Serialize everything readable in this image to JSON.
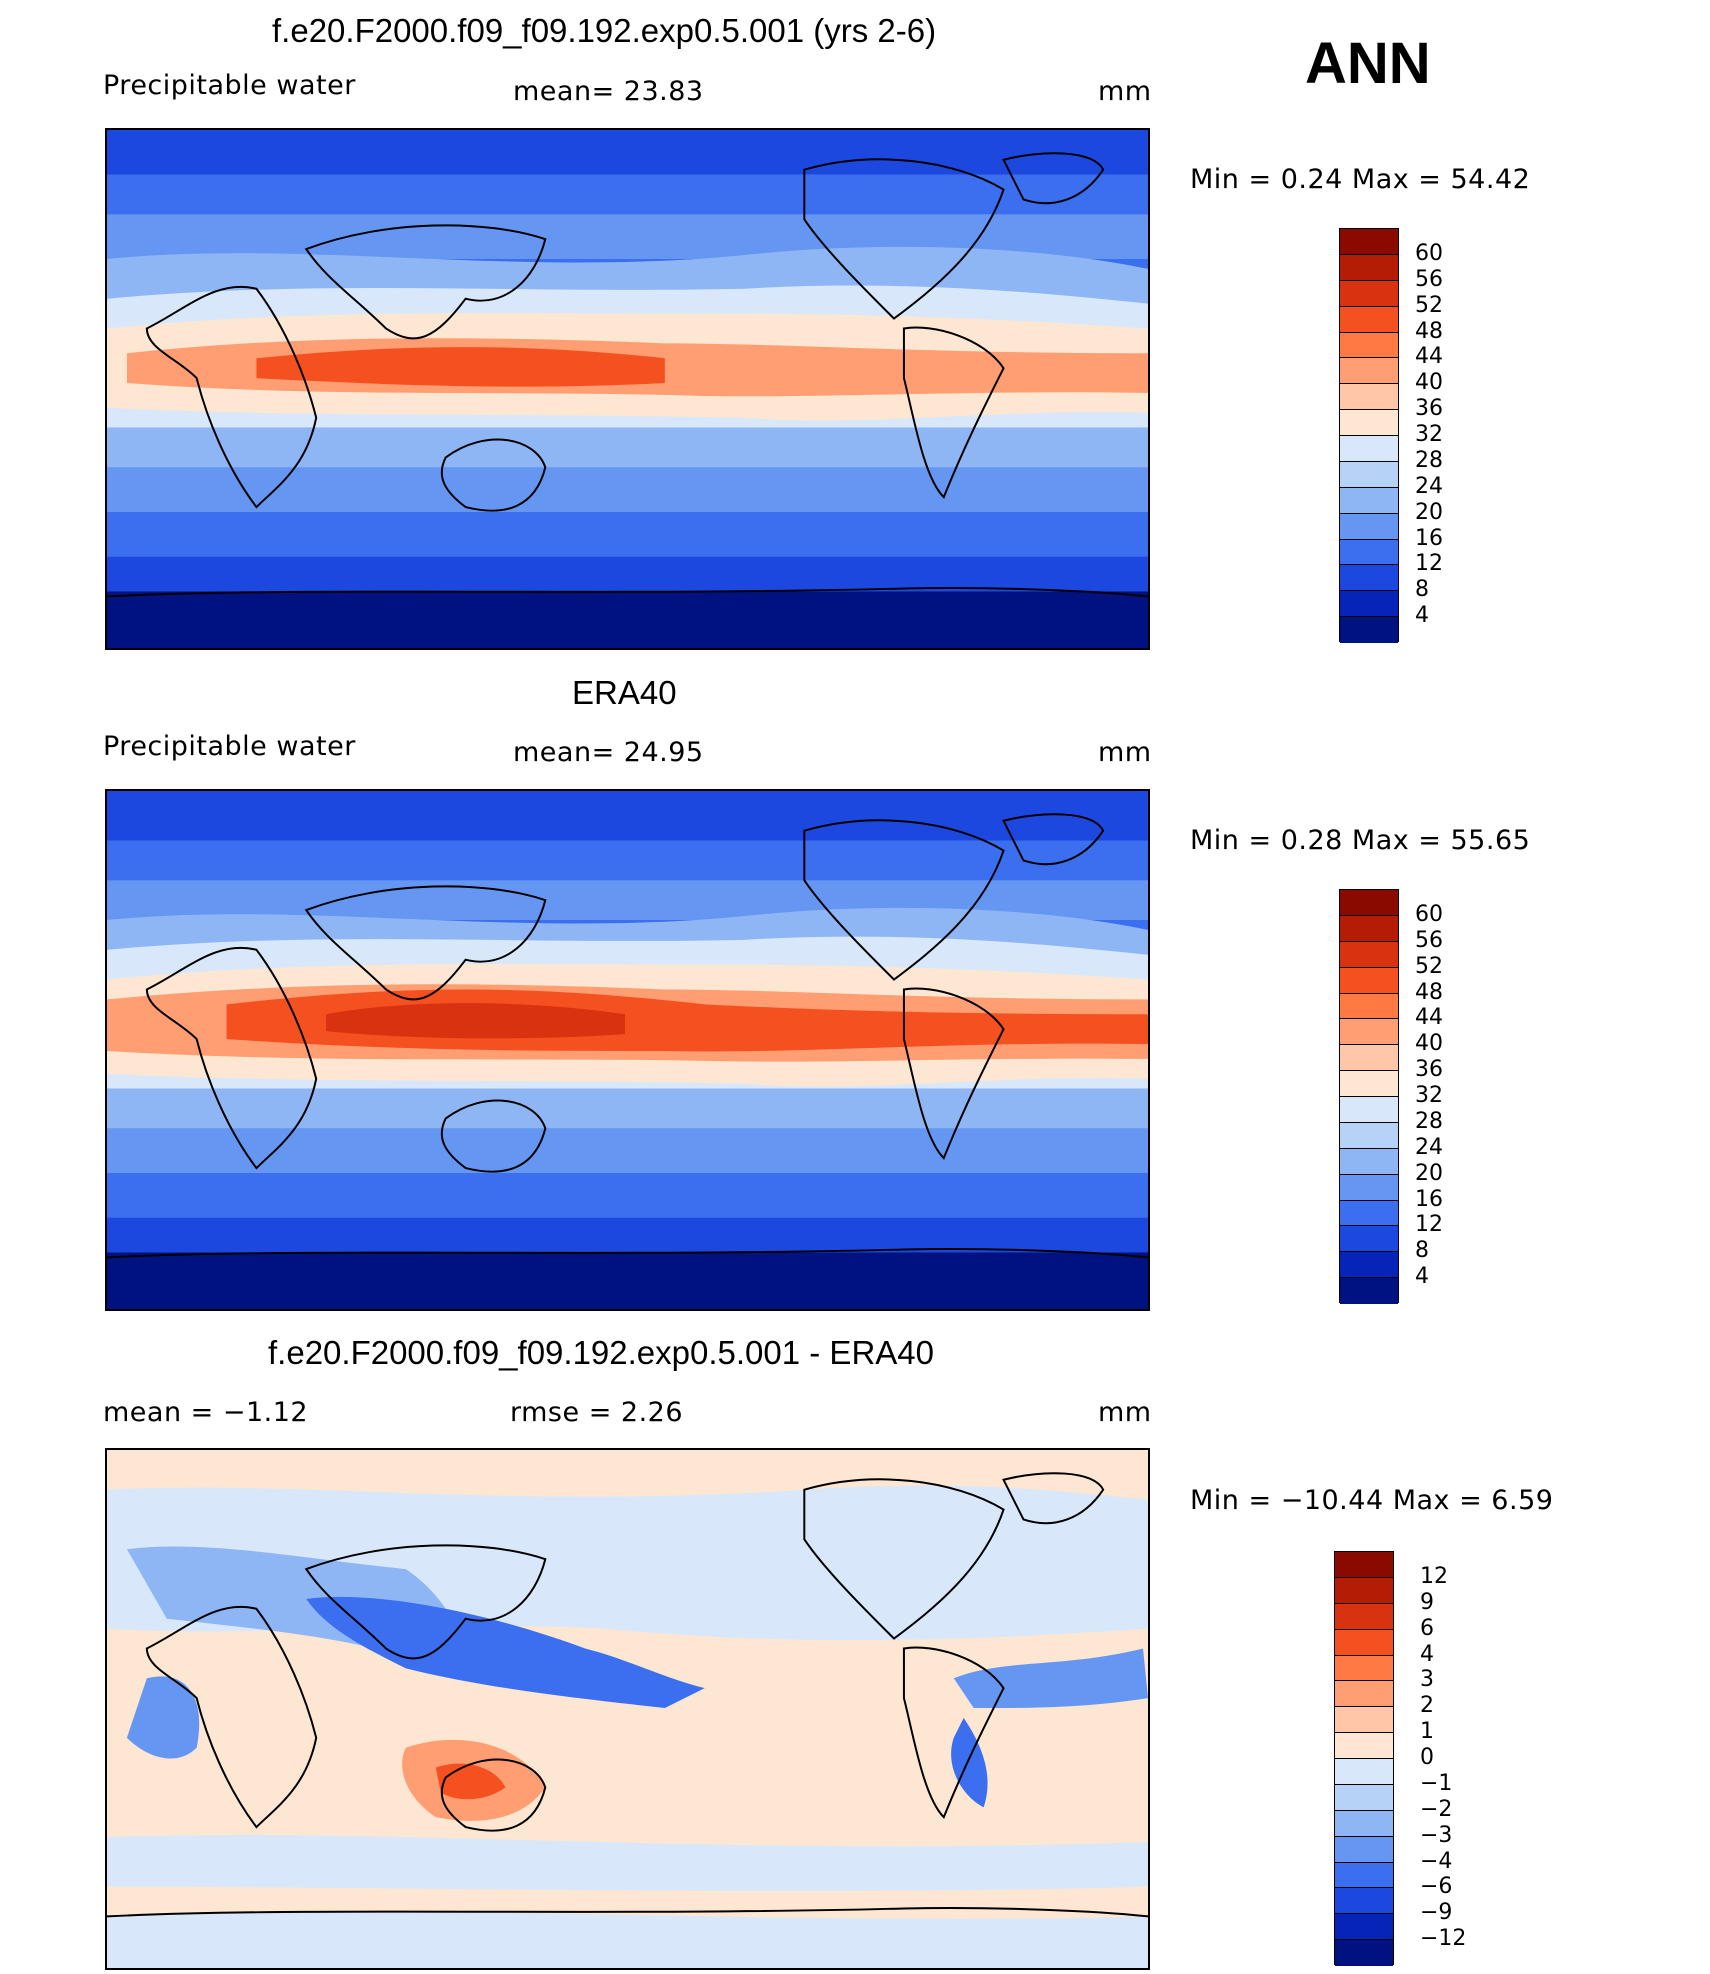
{
  "season": "ANN",
  "panels": [
    {
      "title": "f.e20.F2000.f09_f09.192.exp0.5.001 (yrs 2-6)",
      "left_label": "Precipitable  water",
      "center_label": "mean=   23.83",
      "units": "mm",
      "minmax": "Min  =    0.24  Max  =   54.42",
      "colorbar": {
        "labels": [
          "60",
          "56",
          "52",
          "48",
          "44",
          "40",
          "36",
          "32",
          "28",
          "24",
          "20",
          "16",
          "12",
          "8",
          "4"
        ],
        "colors": [
          "#8b0a00",
          "#b51c06",
          "#d93210",
          "#f55020",
          "#ff7a42",
          "#ff9e72",
          "#ffc6a8",
          "#fde6d2",
          "#d8e8fa",
          "#b6d2f6",
          "#8fb6f4",
          "#6597f2",
          "#3b6ff0",
          "#1d48e0",
          "#0625b8",
          "#001280"
        ]
      },
      "map_field": "model"
    },
    {
      "title": "ERA40",
      "left_label": "Precipitable  water",
      "center_label": "mean=   24.95",
      "units": "mm",
      "minmax": "Min  =    0.28  Max  =   55.65",
      "colorbar": {
        "labels": [
          "60",
          "56",
          "52",
          "48",
          "44",
          "40",
          "36",
          "32",
          "28",
          "24",
          "20",
          "16",
          "12",
          "8",
          "4"
        ],
        "colors": [
          "#8b0a00",
          "#b51c06",
          "#d93210",
          "#f55020",
          "#ff7a42",
          "#ff9e72",
          "#ffc6a8",
          "#fde6d2",
          "#d8e8fa",
          "#b6d2f6",
          "#8fb6f4",
          "#6597f2",
          "#3b6ff0",
          "#1d48e0",
          "#0625b8",
          "#001280"
        ]
      },
      "map_field": "obs"
    },
    {
      "title": "f.e20.F2000.f09_f09.192.exp0.5.001 - ERA40",
      "left_label": "mean  =    −1.12",
      "center_label": "rmse  =     2.26",
      "units": "mm",
      "minmax": "Min  = −10.44  Max  =     6.59",
      "colorbar": {
        "labels": [
          "12",
          "9",
          "6",
          "4",
          "3",
          "2",
          "1",
          "0",
          "−1",
          "−2",
          "−3",
          "−4",
          "−6",
          "−9",
          "−12"
        ],
        "colors": [
          "#8b0a00",
          "#b51c06",
          "#d93210",
          "#f55020",
          "#ff7a42",
          "#ff9e72",
          "#ffc6a8",
          "#fde6d2",
          "#d8e8fa",
          "#b6d2f6",
          "#8fb6f4",
          "#6597f2",
          "#3b6ff0",
          "#1d48e0",
          "#0625b8",
          "#001280"
        ]
      },
      "map_field": "diff"
    }
  ]
}
